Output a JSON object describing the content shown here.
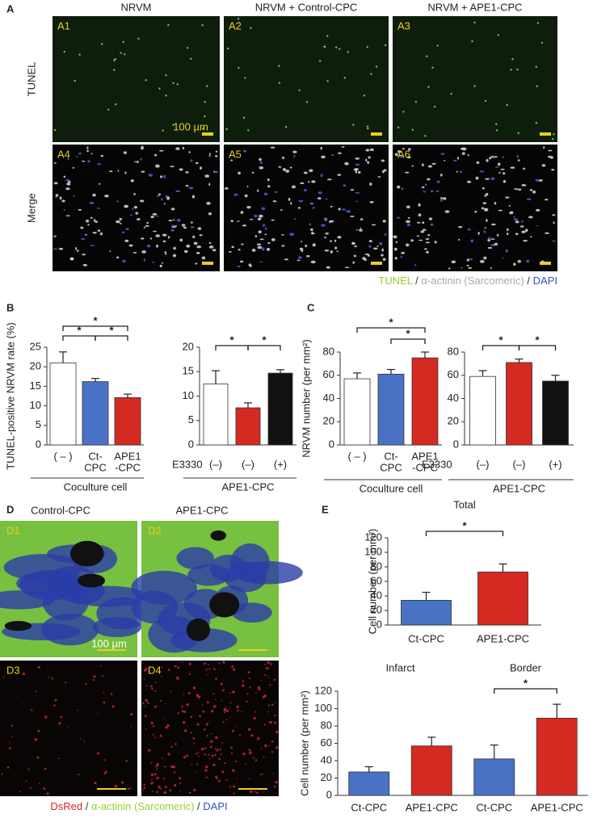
{
  "figure": {
    "panel_letters": [
      "A",
      "B",
      "C",
      "D",
      "E"
    ],
    "panel_a": {
      "columns": [
        "NRVM",
        "NRVM + Control-CPC",
        "NRVM + APE1-CPC"
      ],
      "rows": [
        "TUNEL",
        "Merge"
      ],
      "image_labels": [
        "A1",
        "A2",
        "A3",
        "A4",
        "A5",
        "A6"
      ],
      "scale_label": "100 µm",
      "legend": [
        {
          "text": "TUNEL",
          "color": "#9acd32"
        },
        {
          "text": " / ",
          "color": "#333333"
        },
        {
          "text": "α-actinin (Sarcomeric)",
          "color": "#aaaaaa"
        },
        {
          "text": " / ",
          "color": "#333333"
        },
        {
          "text": "DAPI",
          "color": "#3050c0"
        }
      ]
    },
    "panel_d": {
      "columns": [
        "Control-CPC",
        "APE1-CPC"
      ],
      "image_labels": [
        "D1",
        "D2",
        "D3",
        "D4"
      ],
      "scale_label": "100 µm",
      "legend": [
        {
          "text": "DsRed",
          "color": "#d42a22"
        },
        {
          "text": " / ",
          "color": "#333333"
        },
        {
          "text": "α-actinin (Sarcomeric)",
          "color": "#9acd32"
        },
        {
          "text": " / ",
          "color": "#333333"
        },
        {
          "text": "DAPI",
          "color": "#3050c0"
        }
      ]
    }
  },
  "chart_data": [
    {
      "type": "bar",
      "ylabel": "TUNEL-positive NRVM rate (%)",
      "categories": [
        [
          "( – )"
        ],
        [
          "Ct-",
          "CPC"
        ],
        [
          "APE1",
          "-CPC"
        ]
      ],
      "values": [
        21,
        16.2,
        12.1
      ],
      "errors": [
        2.8,
        0.8,
        0.9
      ],
      "colors": [
        "#ffffff",
        "#4a72c4",
        "#d42a22"
      ],
      "ylim": [
        0,
        25
      ],
      "yticks": [
        0,
        5,
        10,
        15,
        20,
        25
      ],
      "group_label": "Coculture cell",
      "significance": [
        {
          "from": 0,
          "to": 2,
          "label": "*"
        },
        {
          "from": 0,
          "to": 1,
          "label": "*"
        },
        {
          "from": 1,
          "to": 2,
          "label": "*"
        }
      ]
    },
    {
      "type": "bar",
      "row_label": "E3330",
      "categories": [
        [
          "(–)"
        ],
        [
          "(–)"
        ],
        [
          "(+)"
        ]
      ],
      "values": [
        12.5,
        7.6,
        14.7
      ],
      "errors": [
        2.7,
        1.0,
        0.7
      ],
      "colors": [
        "#ffffff",
        "#d42a22",
        "#111111"
      ],
      "ylim": [
        0,
        20
      ],
      "yticks": [
        0,
        5,
        10,
        15,
        20
      ],
      "group_label": "APE1-CPC",
      "significance": [
        {
          "from": 0,
          "to": 1,
          "label": "*"
        },
        {
          "from": 1,
          "to": 2,
          "label": "*"
        }
      ]
    },
    {
      "type": "bar",
      "ylabel": "NRVM number (per mm²)",
      "categories": [
        [
          "( – )"
        ],
        [
          "Ct-",
          "CPC"
        ],
        [
          "APE1",
          "-CPC"
        ]
      ],
      "values": [
        57,
        61,
        75
      ],
      "errors": [
        5,
        4,
        5
      ],
      "colors": [
        "#ffffff",
        "#4a72c4",
        "#d42a22"
      ],
      "ylim": [
        0,
        80
      ],
      "yticks": [
        0,
        20,
        40,
        60,
        80
      ],
      "group_label": "Coculture cell",
      "significance": [
        {
          "from": 0,
          "to": 2,
          "label": "*"
        },
        {
          "from": 1,
          "to": 2,
          "label": "*"
        }
      ]
    },
    {
      "type": "bar",
      "row_label": "E3330",
      "categories": [
        [
          "(–)"
        ],
        [
          "(–)"
        ],
        [
          "(+)"
        ]
      ],
      "values": [
        59,
        71,
        55
      ],
      "errors": [
        5,
        3,
        5
      ],
      "colors": [
        "#ffffff",
        "#d42a22",
        "#111111"
      ],
      "ylim": [
        0,
        80
      ],
      "yticks": [
        0,
        20,
        40,
        60,
        80
      ],
      "group_label": "APE1-CPC",
      "significance": [
        {
          "from": 0,
          "to": 1,
          "label": "*"
        },
        {
          "from": 1,
          "to": 2,
          "label": "*"
        }
      ]
    },
    {
      "type": "bar",
      "title": "Total",
      "ylabel": "Cell number (per mm²)",
      "categories": [
        [
          "Ct-CPC"
        ],
        [
          "APE1-CPC"
        ]
      ],
      "values": [
        34,
        73
      ],
      "errors": [
        11,
        11
      ],
      "colors": [
        "#4a72c4",
        "#d42a22"
      ],
      "ylim": [
        0,
        120
      ],
      "yticks": [
        0,
        20,
        40,
        60,
        80,
        100,
        120
      ],
      "significance": [
        {
          "from": 0,
          "to": 1,
          "label": "*"
        }
      ]
    },
    {
      "type": "bar",
      "ylabel": "Cell number (per mm²)",
      "group_titles": [
        "Infarct",
        "Border"
      ],
      "categories": [
        [
          "Ct-CPC"
        ],
        [
          "APE1-CPC"
        ],
        [
          "Ct-CPC"
        ],
        [
          "APE1-CPC"
        ]
      ],
      "values": [
        27,
        57,
        42,
        89
      ],
      "errors": [
        6,
        10,
        16,
        16
      ],
      "colors": [
        "#4a72c4",
        "#d42a22",
        "#4a72c4",
        "#d42a22"
      ],
      "ylim": [
        0,
        120
      ],
      "yticks": [
        0,
        20,
        40,
        60,
        80,
        100,
        120
      ],
      "significance": [
        {
          "from": 2,
          "to": 3,
          "label": "*"
        }
      ]
    }
  ]
}
